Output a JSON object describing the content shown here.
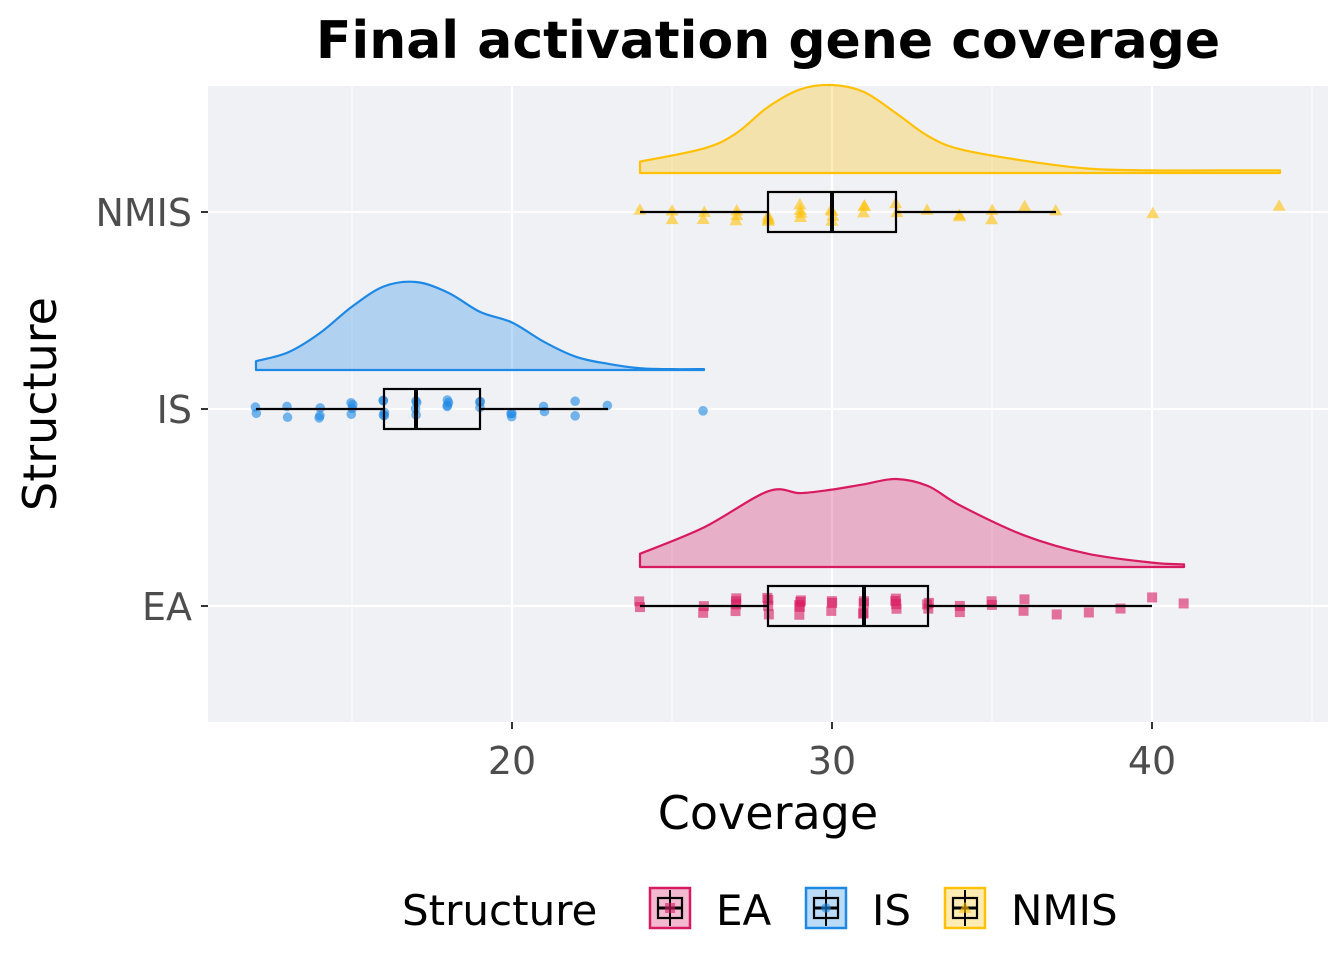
{
  "chart_data": {
    "type": "raincloud",
    "title": "Final activation gene coverage",
    "xlabel": "Coverage",
    "ylabel": "Structure",
    "xlim": [
      10.5,
      45.5
    ],
    "xticks": [
      20,
      30,
      40
    ],
    "grid": true,
    "legend_position": "bottom",
    "legend_title": "Structure",
    "categories": [
      "EA",
      "IS",
      "NMIS"
    ],
    "series": [
      {
        "name": "EA",
        "color": "#D81B60",
        "box": {
          "min": 24,
          "q1": 28,
          "median": 31,
          "q3": 33,
          "max": 40
        },
        "outliers": [
          41
        ],
        "density": {
          "x": [
            24,
            26,
            28,
            29,
            30,
            31,
            32,
            33,
            34,
            36,
            38,
            40,
            41
          ],
          "y": [
            0.15,
            0.45,
            0.86,
            0.84,
            0.88,
            0.94,
            1.0,
            0.92,
            0.7,
            0.36,
            0.15,
            0.05,
            0.03
          ]
        },
        "points": [
          24,
          24,
          26,
          26,
          27,
          27,
          27,
          27,
          28,
          28,
          28,
          28,
          29,
          29,
          29,
          29,
          29,
          30,
          30,
          30,
          31,
          31,
          31,
          31,
          32,
          32,
          32,
          32,
          33,
          33,
          33,
          34,
          34,
          35,
          35,
          36,
          36,
          37,
          38,
          39,
          40,
          41
        ]
      },
      {
        "name": "IS",
        "color": "#1E88E5",
        "box": {
          "min": 12,
          "q1": 16,
          "median": 17,
          "q3": 19,
          "max": 23
        },
        "outliers": [
          26
        ],
        "density": {
          "x": [
            12,
            13,
            14,
            15,
            16,
            17,
            18,
            19,
            20,
            21,
            22,
            23,
            24,
            25,
            26
          ],
          "y": [
            0.1,
            0.2,
            0.42,
            0.72,
            0.95,
            1.0,
            0.88,
            0.66,
            0.54,
            0.32,
            0.15,
            0.07,
            0.02,
            0.01,
            0.01
          ]
        },
        "points": [
          12,
          12,
          13,
          13,
          14,
          14,
          14,
          15,
          15,
          15,
          15,
          16,
          16,
          16,
          16,
          16,
          17,
          17,
          17,
          17,
          18,
          18,
          18,
          18,
          19,
          19,
          19,
          20,
          20,
          20,
          21,
          21,
          22,
          22,
          23,
          26
        ]
      },
      {
        "name": "NMIS",
        "color": "#FFC107",
        "box": {
          "min": 24,
          "q1": 28,
          "median": 30,
          "q3": 32,
          "max": 37
        },
        "outliers": [
          40,
          44
        ],
        "density": {
          "x": [
            24,
            26,
            27,
            28,
            29,
            30,
            31,
            32,
            33,
            34,
            36,
            38,
            40,
            42,
            44
          ],
          "y": [
            0.13,
            0.28,
            0.45,
            0.75,
            0.95,
            1.0,
            0.92,
            0.68,
            0.42,
            0.27,
            0.14,
            0.05,
            0.03,
            0.03,
            0.03
          ]
        },
        "points": [
          24,
          25,
          25,
          26,
          26,
          27,
          27,
          27,
          28,
          28,
          28,
          28,
          29,
          29,
          29,
          29,
          30,
          30,
          30,
          30,
          31,
          31,
          31,
          32,
          32,
          33,
          34,
          34,
          35,
          35,
          36,
          37,
          40,
          44
        ]
      }
    ]
  }
}
